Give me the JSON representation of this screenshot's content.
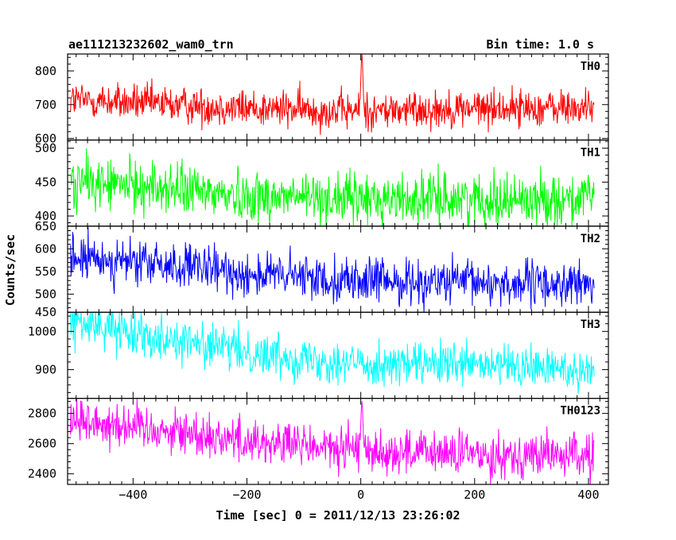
{
  "chart_data": {
    "type": "line",
    "title": "ae111213232602_wam0_trn",
    "bin_time_label": "Bin time: 1.0 s",
    "xlabel": "Time [sec] 0 = 2011/12/13 23:26:02",
    "ylabel": "Counts/sec",
    "xlim": [
      -515,
      435
    ],
    "x_ticks": [
      -400,
      -200,
      0,
      200,
      400
    ],
    "x_tick_labels": [
      "−400",
      "−200",
      "0",
      "200",
      "400"
    ],
    "panels": [
      {
        "name": "TH0",
        "color": "#ff0000",
        "ylim": [
          595,
          850
        ],
        "y_ticks": [
          600,
          700,
          800
        ],
        "y_tick_labels": [
          "600",
          "700",
          "800"
        ],
        "baseline": [
          [
            -510,
            715
          ],
          [
            -400,
            705
          ],
          [
            -200,
            690
          ],
          [
            0,
            680
          ],
          [
            200,
            690
          ],
          [
            410,
            690
          ]
        ],
        "noise": 28,
        "spike": {
          "x": 2,
          "peak": 850
        }
      },
      {
        "name": "TH1",
        "color": "#00ff00",
        "ylim": [
          385,
          512
        ],
        "y_ticks": [
          400,
          450,
          500
        ],
        "y_tick_labels": [
          "400",
          "450",
          "500"
        ],
        "baseline": [
          [
            -510,
            450
          ],
          [
            -400,
            445
          ],
          [
            -200,
            430
          ],
          [
            0,
            425
          ],
          [
            200,
            425
          ],
          [
            410,
            425
          ]
        ],
        "noise": 19
      },
      {
        "name": "TH2",
        "color": "#0000ff",
        "ylim": [
          460,
          650
        ],
        "y_ticks": [
          500,
          550,
          600,
          650
        ],
        "y_tick_labels": [
          "500",
          "550",
          "600",
          "650"
        ],
        "baseline": [
          [
            -510,
            580
          ],
          [
            -400,
            570
          ],
          [
            -200,
            545
          ],
          [
            0,
            530
          ],
          [
            200,
            525
          ],
          [
            410,
            520
          ]
        ],
        "noise": 25
      },
      {
        "name": "TH3",
        "color": "#00ffff",
        "ylim": [
          825,
          1050
        ],
        "y_ticks": [
          900,
          1000
        ],
        "y_tick_labels": [
          "900",
          "1000"
        ],
        "extra_top_label": "450",
        "baseline": [
          [
            -510,
            1025
          ],
          [
            -400,
            1000
          ],
          [
            -200,
            945
          ],
          [
            0,
            915
          ],
          [
            200,
            910
          ],
          [
            410,
            900
          ]
        ],
        "noise": 28
      },
      {
        "name": "TH0123",
        "color": "#ff00ff",
        "ylim": [
          2330,
          2900
        ],
        "y_ticks": [
          2400,
          2600,
          2800
        ],
        "y_tick_labels": [
          "2400",
          "2600",
          "2800"
        ],
        "baseline": [
          [
            -510,
            2760
          ],
          [
            -400,
            2720
          ],
          [
            -200,
            2620
          ],
          [
            0,
            2550
          ],
          [
            200,
            2530
          ],
          [
            410,
            2520
          ]
        ],
        "noise": 75,
        "spike": {
          "x": 2,
          "peak": 2880
        }
      }
    ]
  }
}
